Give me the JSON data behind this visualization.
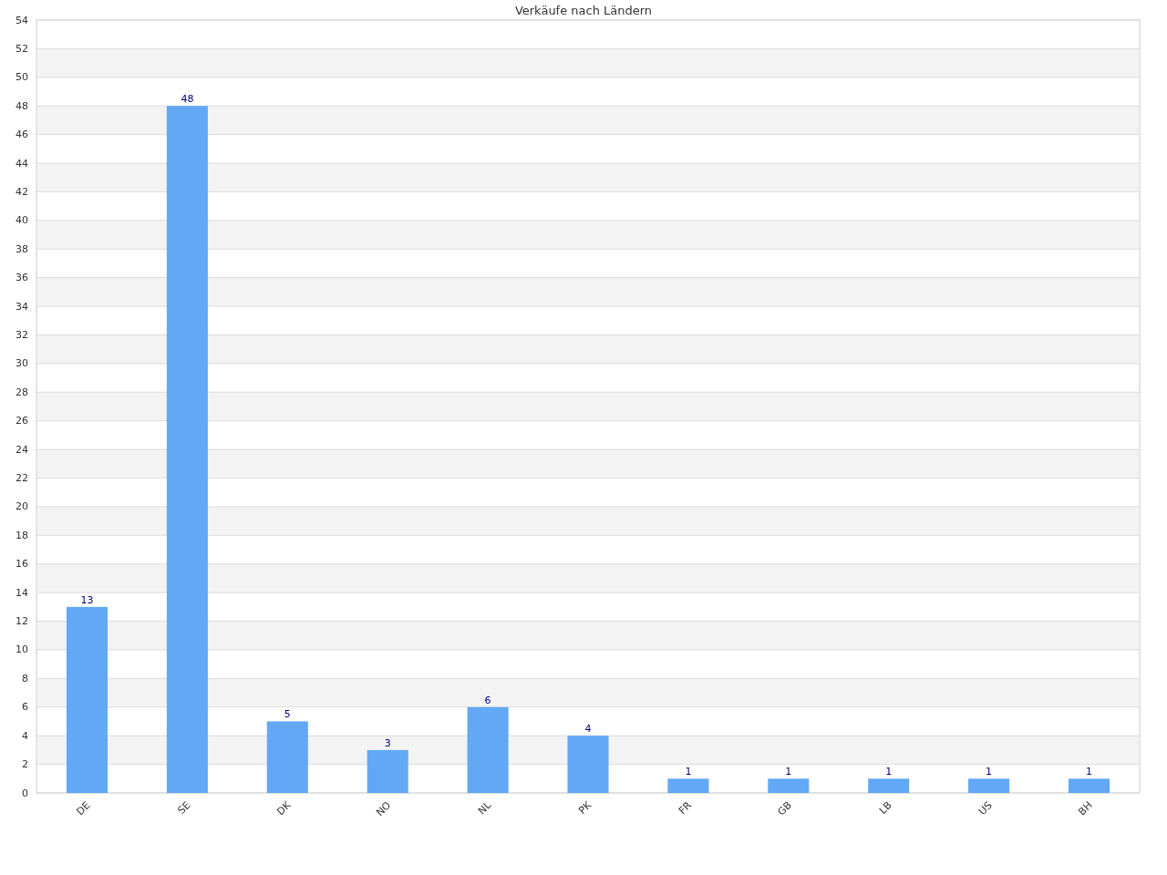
{
  "chart_data": {
    "type": "bar",
    "title": "Verkäufe nach Ländern",
    "categories": [
      "DE",
      "SE",
      "DK",
      "NO",
      "NL",
      "PK",
      "FR",
      "GB",
      "LB",
      "US",
      "BH"
    ],
    "values": [
      13,
      48,
      5,
      3,
      6,
      4,
      1,
      1,
      1,
      1,
      1
    ],
    "color": "#62a8f5",
    "ylim": [
      0,
      54
    ],
    "yticks": [
      0,
      2,
      4,
      6,
      8,
      10,
      12,
      14,
      16,
      18,
      20,
      22,
      24,
      26,
      28,
      30,
      32,
      34,
      36,
      38,
      40,
      42,
      44,
      46,
      48,
      50,
      52,
      54
    ],
    "grid": true,
    "data_labels": true
  }
}
